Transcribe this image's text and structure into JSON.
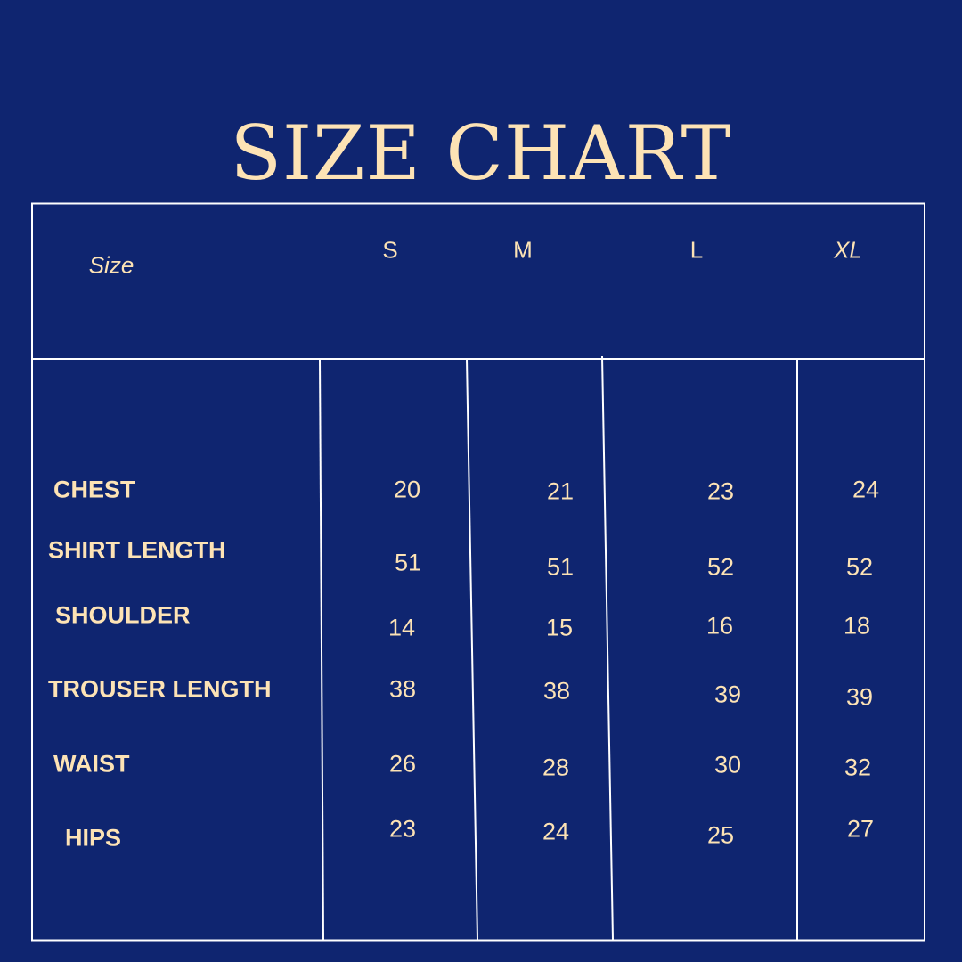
{
  "title": "SIZE CHART",
  "colors": {
    "background": "#0f2570",
    "text": "#fde3b5",
    "lines": "#ffffff"
  },
  "table": {
    "header_label": "Size",
    "sizes": [
      "S",
      "M",
      "L",
      "XL"
    ],
    "rows": [
      {
        "label": "CHEST",
        "values": [
          "20",
          "21",
          "23",
          "24"
        ]
      },
      {
        "label": "SHIRT LENGTH",
        "values": [
          "51",
          "51",
          "52",
          "52"
        ]
      },
      {
        "label": "SHOULDER",
        "values": [
          "14",
          "15",
          "16",
          "18"
        ]
      },
      {
        "label": "TROUSER LENGTH",
        "values": [
          "38",
          "38",
          "39",
          "39"
        ]
      },
      {
        "label": "WAIST",
        "values": [
          "26",
          "28",
          "30",
          "32"
        ]
      },
      {
        "label": "HIPS",
        "values": [
          "23",
          "24",
          "25",
          "27"
        ]
      }
    ]
  }
}
